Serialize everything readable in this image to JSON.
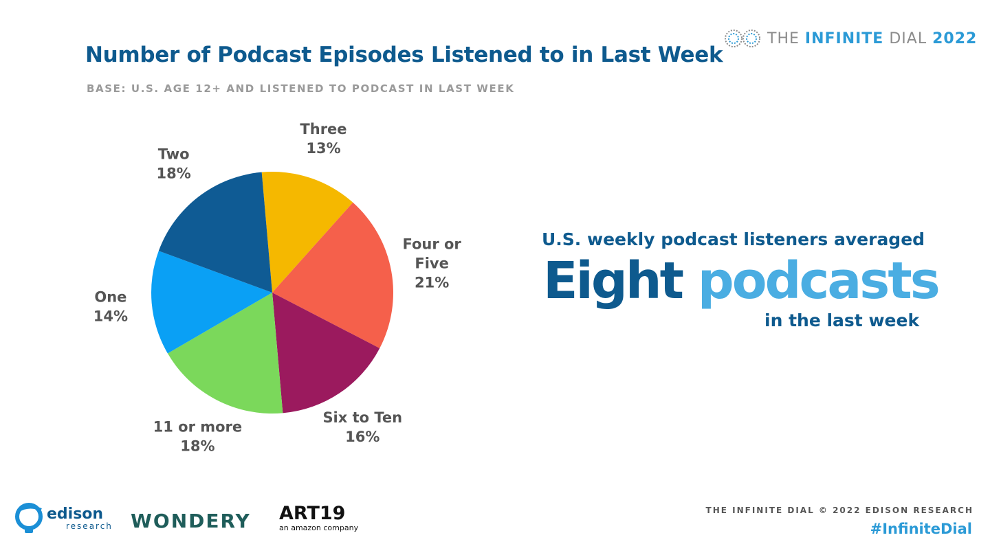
{
  "header": {
    "title": "Number of Podcast Episodes Listened to in Last Week",
    "subtitle": "BASE: U.S. AGE 12+ AND LISTENED TO PODCAST IN LAST WEEK"
  },
  "brand": {
    "word1": "THE",
    "word2": "INFINITE",
    "word3": "DIAL",
    "year": "2022"
  },
  "chart_data": {
    "type": "pie",
    "start_angle_deg": -5,
    "direction": "clockwise",
    "slices": [
      {
        "label_lines": [
          "Three"
        ],
        "value": 13,
        "display": "13%",
        "color": "#f5b800"
      },
      {
        "label_lines": [
          "Four or",
          "Five"
        ],
        "value": 21,
        "display": "21%",
        "color": "#f5604b"
      },
      {
        "label_lines": [
          "Six to Ten"
        ],
        "value": 16,
        "display": "16%",
        "color": "#9b1a5e"
      },
      {
        "label_lines": [
          "11 or more"
        ],
        "value": 18,
        "display": "18%",
        "color": "#7bd85b"
      },
      {
        "label_lines": [
          "One"
        ],
        "value": 14,
        "display": "14%",
        "color": "#0aa0f5"
      },
      {
        "label_lines": [
          "Two"
        ],
        "value": 18,
        "display": "18%",
        "color": "#0f5b94"
      }
    ]
  },
  "callout": {
    "top_line": "U.S. weekly podcast listeners averaged",
    "big_word1": "Eight",
    "big_word2": "podcasts",
    "bottom_line": "in the last week"
  },
  "footer": {
    "credit": "THE INFINITE DIAL   © 2022 EDISON RESEARCH",
    "hashtag": "#InfiniteDial"
  },
  "logos": {
    "edison_name": "edison",
    "edison_sub": "research",
    "wondery": "WONDERY",
    "art19_name": "ART19",
    "art19_sub": "an amazon company"
  },
  "colors": {
    "title": "#0e5a8e",
    "accent": "#2b9ad6",
    "label": "#555555"
  }
}
